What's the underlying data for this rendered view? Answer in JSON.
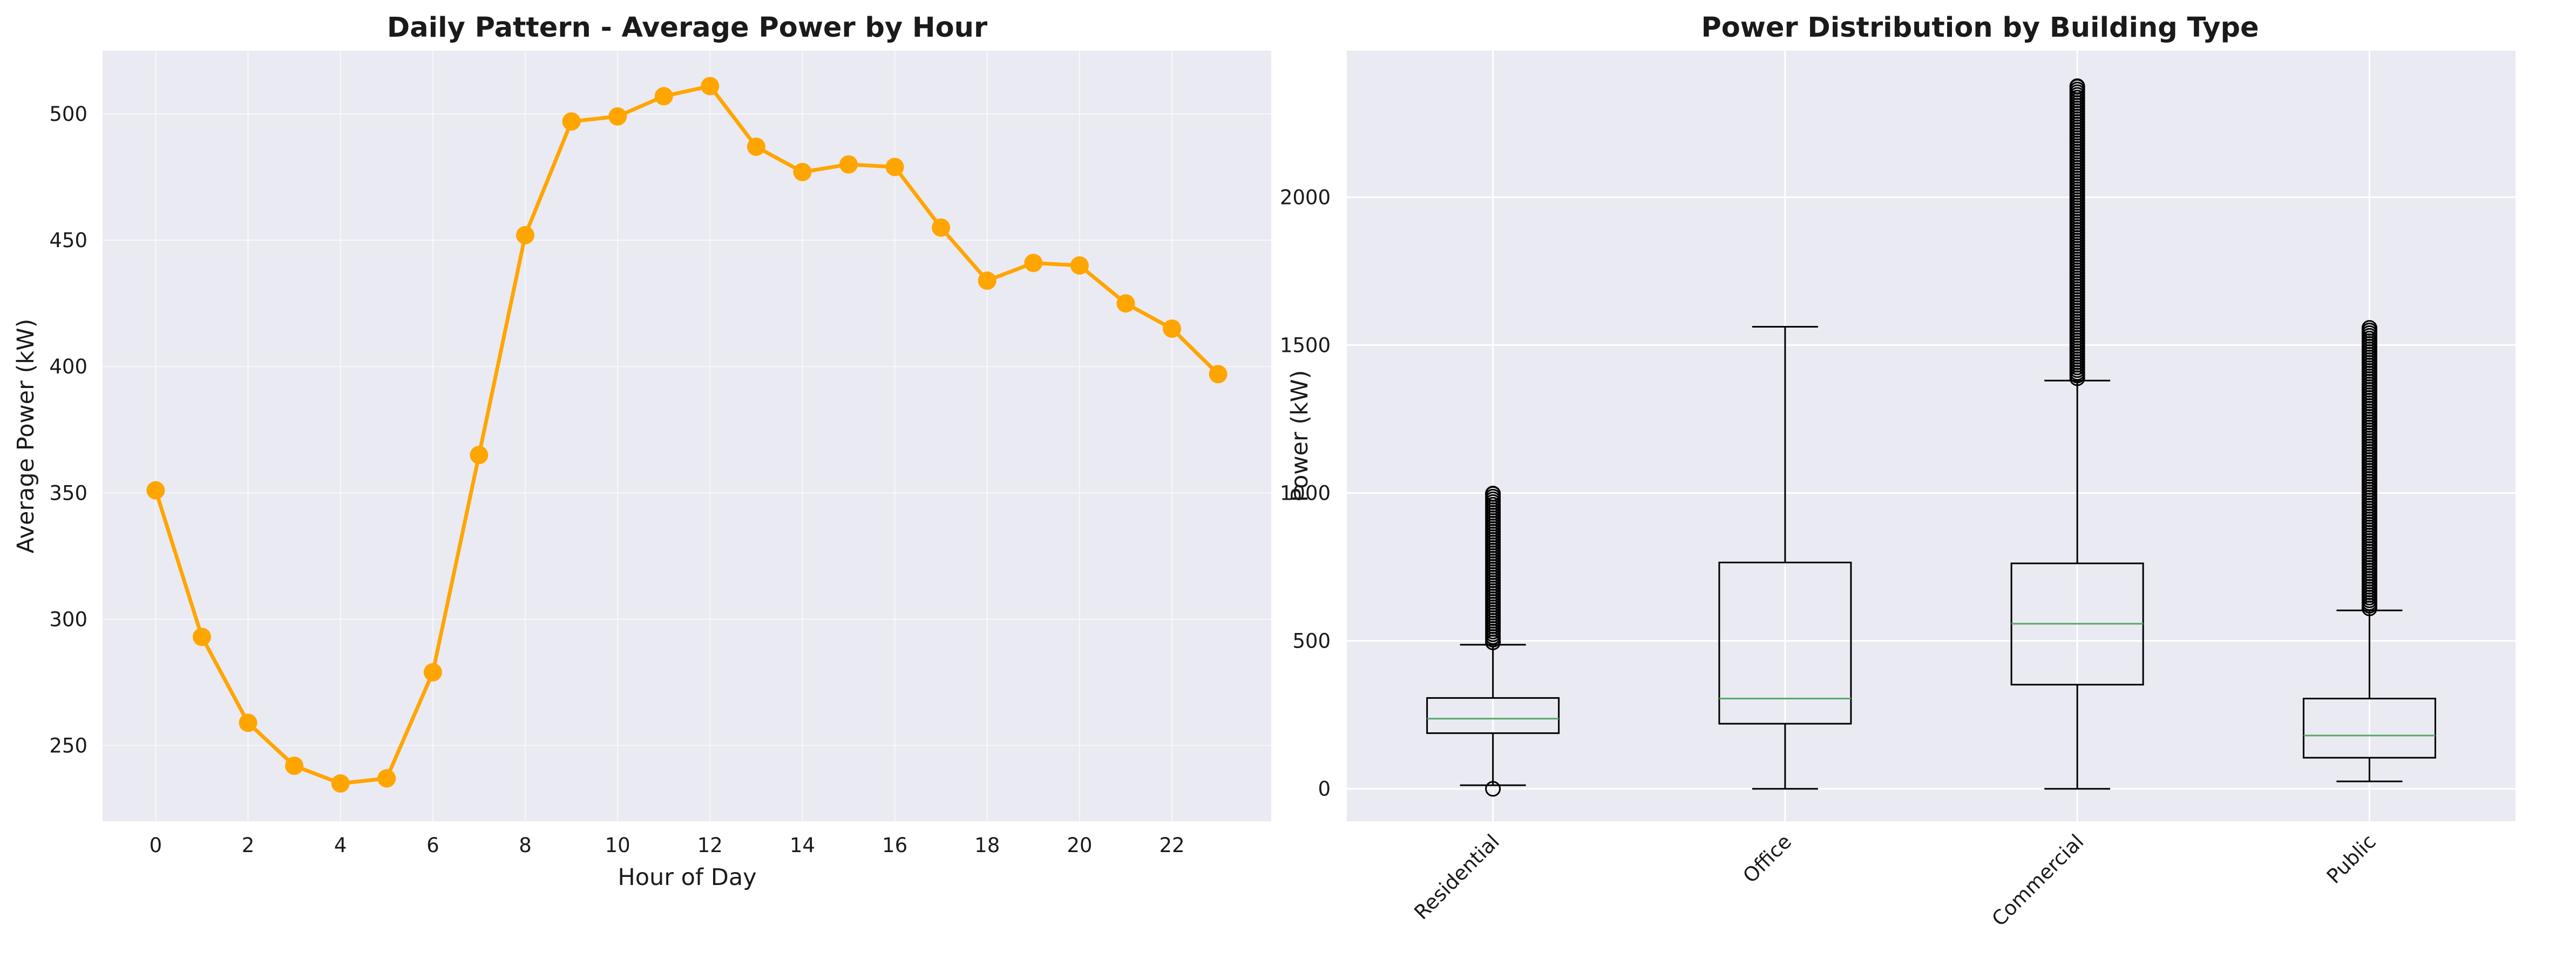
{
  "chart_data": [
    {
      "type": "line",
      "title": "Daily Pattern - Average Power by Hour",
      "xlabel": "Hour of Day",
      "ylabel": "Average Power (kW)",
      "x": [
        0,
        1,
        2,
        3,
        4,
        5,
        6,
        7,
        8,
        9,
        10,
        11,
        12,
        13,
        14,
        15,
        16,
        17,
        18,
        19,
        20,
        21,
        22,
        23
      ],
      "values": [
        351,
        293,
        259,
        242,
        235,
        237,
        279,
        365,
        452,
        497,
        499,
        507,
        511,
        487,
        477,
        480,
        479,
        455,
        434,
        441,
        440,
        425,
        415,
        397
      ],
      "xticks": [
        0,
        2,
        4,
        6,
        8,
        10,
        12,
        14,
        16,
        18,
        20,
        22
      ],
      "yticks": [
        250,
        300,
        350,
        400,
        450,
        500
      ],
      "xlim": [
        -1.15,
        24.15
      ],
      "ylim": [
        220,
        525
      ],
      "grid": true,
      "color": "#FFA500"
    },
    {
      "type": "box",
      "title": "Power Distribution by Building Type",
      "xlabel": "",
      "ylabel": "Power (kW)",
      "categories": [
        "Residential",
        "Office",
        "Commercial",
        "Public"
      ],
      "boxes": [
        {
          "whisker_low": 12,
          "q1": 188,
          "median": 237,
          "q3": 307,
          "whisker_high": 487,
          "outliers_high_from": 495,
          "outliers_high_to": 998,
          "outliers_low": [
            0
          ]
        },
        {
          "whisker_low": 0,
          "q1": 220,
          "median": 305,
          "q3": 765,
          "whisker_high": 1562,
          "outliers_high_from": null,
          "outliers_high_to": null,
          "outliers_low": []
        },
        {
          "whisker_low": 0,
          "q1": 352,
          "median": 558,
          "q3": 762,
          "whisker_high": 1380,
          "outliers_high_from": 1388,
          "outliers_high_to": 2375,
          "outliers_low": []
        },
        {
          "whisker_low": 25,
          "q1": 105,
          "median": 180,
          "q3": 305,
          "whisker_high": 603,
          "outliers_high_from": 610,
          "outliers_high_to": 1558,
          "outliers_low": []
        }
      ],
      "yticks": [
        0,
        500,
        1000,
        1500,
        2000
      ],
      "ylim": [
        -110,
        2495
      ],
      "grid": true,
      "median_color": "#55A868"
    }
  ]
}
